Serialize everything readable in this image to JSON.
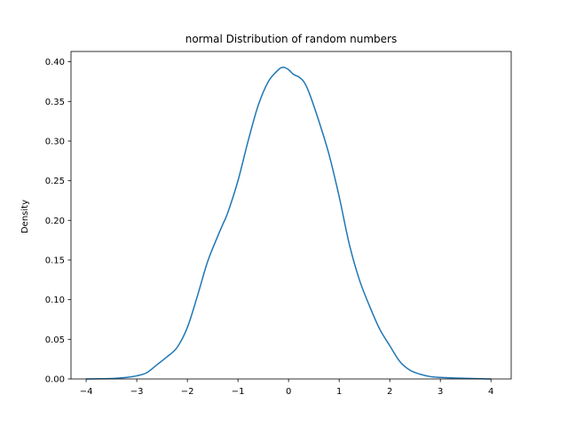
{
  "chart_data": {
    "type": "line",
    "title": "normal Distribution of random numbers",
    "xlabel": "",
    "ylabel": "Density",
    "xlim": [
      -4.3,
      4.4
    ],
    "ylim": [
      0,
      0.413
    ],
    "xticks": [
      -4,
      -3,
      -2,
      -1,
      0,
      1,
      2,
      3,
      4
    ],
    "xtick_labels": [
      "−4",
      "−3",
      "−2",
      "−1",
      "0",
      "1",
      "2",
      "3",
      "4"
    ],
    "yticks": [
      0,
      0.05,
      0.1,
      0.15,
      0.2,
      0.25,
      0.3,
      0.35,
      0.4
    ],
    "ytick_labels": [
      "0.00",
      "0.05",
      "0.10",
      "0.15",
      "0.20",
      "0.25",
      "0.30",
      "0.35",
      "0.40"
    ],
    "grid": false,
    "line_color": "#1f77b4",
    "series": [
      {
        "x": [
          -4.0,
          -3.5,
          -3.2,
          -3.0,
          -2.8,
          -2.6,
          -2.4,
          -2.2,
          -2.0,
          -1.8,
          -1.6,
          -1.4,
          -1.3,
          -1.2,
          -1.0,
          -0.8,
          -0.6,
          -0.4,
          -0.2,
          -0.1,
          0.0,
          0.1,
          0.2,
          0.3,
          0.4,
          0.6,
          0.8,
          1.0,
          1.2,
          1.4,
          1.6,
          1.8,
          2.0,
          2.2,
          2.4,
          2.6,
          2.8,
          3.0,
          3.4,
          3.8,
          4.0
        ],
        "y": [
          0.0,
          0.0005,
          0.002,
          0.004,
          0.008,
          0.018,
          0.028,
          0.04,
          0.065,
          0.105,
          0.148,
          0.18,
          0.195,
          0.21,
          0.25,
          0.3,
          0.345,
          0.375,
          0.39,
          0.393,
          0.39,
          0.384,
          0.381,
          0.375,
          0.362,
          0.325,
          0.283,
          0.23,
          0.17,
          0.125,
          0.092,
          0.063,
          0.042,
          0.022,
          0.011,
          0.006,
          0.003,
          0.002,
          0.001,
          0.0003,
          0.0
        ]
      }
    ]
  }
}
